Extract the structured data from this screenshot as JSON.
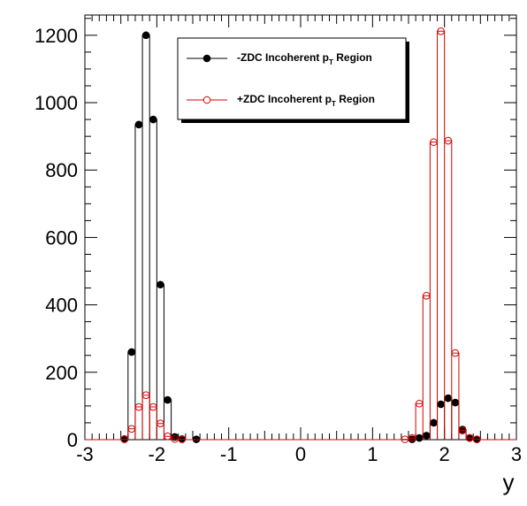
{
  "chart_data": {
    "type": "line",
    "xlabel": "y",
    "ylabel": "",
    "xlim": [
      -3,
      3
    ],
    "ylim": [
      0,
      1260
    ],
    "xticks": [
      -3,
      -2,
      -1,
      0,
      1,
      2,
      3
    ],
    "yticks": [
      0,
      200,
      400,
      600,
      800,
      1000,
      1200
    ],
    "bin_width": 0.1,
    "legend_position": "top-right",
    "series": [
      {
        "name": "-ZDC Incoherent pT Region",
        "name_prefix": "-ZDC Incoherent p",
        "name_sub": "T",
        "name_suffix": " Region",
        "color": "#000000",
        "marker": "filled-circle",
        "x": [
          -2.45,
          -2.35,
          -2.25,
          -2.15,
          -2.05,
          -1.95,
          -1.85,
          -1.75,
          -1.65,
          -1.45,
          1.55,
          1.65,
          1.75,
          1.85,
          1.95,
          2.05,
          2.15,
          2.25,
          2.35,
          2.45
        ],
        "values": [
          2,
          260,
          935,
          1200,
          950,
          460,
          118,
          8,
          2,
          1,
          1,
          5,
          12,
          50,
          105,
          123,
          110,
          30,
          5,
          1
        ]
      },
      {
        "name": "+ZDC Incoherent pT Region",
        "name_prefix": "+ZDC Incoherent p",
        "name_sub": "T",
        "name_suffix": " Region",
        "color": "#d40000",
        "marker": "open-circle",
        "x": [
          -2.45,
          -2.35,
          -2.25,
          -2.15,
          -2.05,
          -1.95,
          -1.85,
          -1.75,
          -1.65,
          1.45,
          1.55,
          1.65,
          1.75,
          1.85,
          1.95,
          2.05,
          2.15,
          2.25,
          2.35,
          2.45
        ],
        "values": [
          1,
          32,
          97,
          132,
          97,
          48,
          10,
          2,
          1,
          1,
          5,
          107,
          427,
          883,
          1212,
          887,
          257,
          27,
          5,
          1
        ]
      }
    ]
  }
}
